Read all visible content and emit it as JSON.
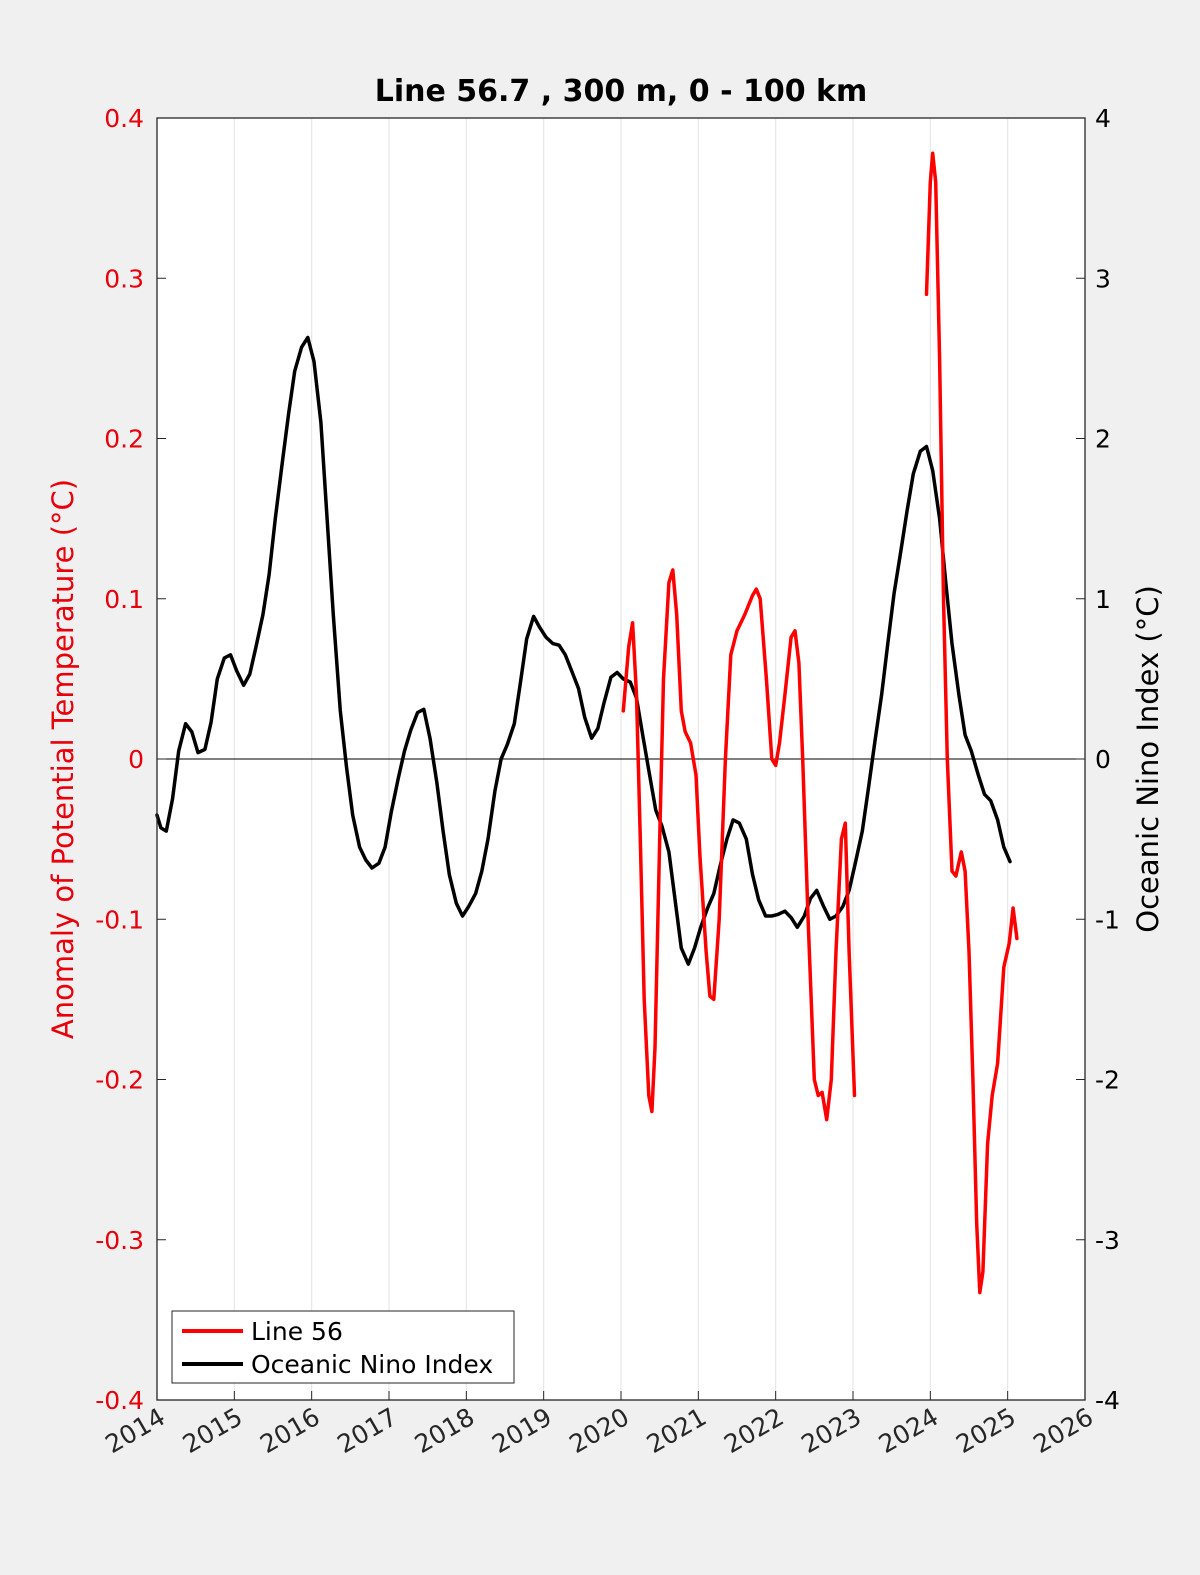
{
  "chart_data": {
    "type": "line",
    "title": "Line 56.7 , 300 m, 0 - 100 km",
    "ylabel_left": "Anomaly of Potential Temperature (°C)",
    "ylabel_right": "Oceanic Nino Index (°C)",
    "xlim": [
      2014,
      2026
    ],
    "ylim_left": [
      -0.4,
      0.4
    ],
    "ylim_right": [
      -4,
      4
    ],
    "grid": "vertical",
    "legend_position": "bottom-left",
    "x_ticks": [
      "2014",
      "2015",
      "2016",
      "2017",
      "2018",
      "2019",
      "2020",
      "2021",
      "2022",
      "2023",
      "2024",
      "2025",
      "2026"
    ],
    "y_ticks_left": [
      "-0.4",
      "-0.3",
      "-0.2",
      "-0.1",
      "0",
      "0.1",
      "0.2",
      "0.3",
      "0.4"
    ],
    "y_ticks_right": [
      "-4",
      "-3",
      "-2",
      "-1",
      "0",
      "1",
      "2",
      "3",
      "4"
    ],
    "zero_line": 0,
    "series": [
      {
        "name": "Line 56",
        "color": "#ff0000",
        "axis": "left",
        "segments": [
          [
            [
              2020.03,
              0.03
            ],
            [
              2020.1,
              0.07
            ],
            [
              2020.15,
              0.085
            ],
            [
              2020.2,
              0.04
            ],
            [
              2020.25,
              -0.05
            ],
            [
              2020.3,
              -0.15
            ],
            [
              2020.36,
              -0.21
            ],
            [
              2020.4,
              -0.22
            ],
            [
              2020.44,
              -0.18
            ],
            [
              2020.5,
              -0.05
            ],
            [
              2020.55,
              0.05
            ],
            [
              2020.62,
              0.11
            ],
            [
              2020.67,
              0.118
            ],
            [
              2020.72,
              0.09
            ],
            [
              2020.78,
              0.03
            ],
            [
              2020.83,
              0.017
            ],
            [
              2020.9,
              0.01
            ],
            [
              2020.97,
              -0.01
            ],
            [
              2021.02,
              -0.06
            ],
            [
              2021.1,
              -0.12
            ],
            [
              2021.15,
              -0.148
            ],
            [
              2021.2,
              -0.15
            ],
            [
              2021.27,
              -0.1
            ],
            [
              2021.35,
              0
            ],
            [
              2021.42,
              0.065
            ],
            [
              2021.5,
              0.08
            ],
            [
              2021.6,
              0.09
            ],
            [
              2021.7,
              0.102
            ],
            [
              2021.75,
              0.106
            ],
            [
              2021.8,
              0.1
            ],
            [
              2021.88,
              0.05
            ],
            [
              2021.95,
              0.0
            ],
            [
              2022.0,
              -0.004
            ],
            [
              2022.05,
              0.01
            ],
            [
              2022.12,
              0.04
            ],
            [
              2022.2,
              0.076
            ],
            [
              2022.25,
              0.08
            ],
            [
              2022.3,
              0.06
            ],
            [
              2022.35,
              0.0
            ],
            [
              2022.42,
              -0.1
            ],
            [
              2022.5,
              -0.2
            ],
            [
              2022.55,
              -0.21
            ],
            [
              2022.6,
              -0.208
            ],
            [
              2022.66,
              -0.225
            ],
            [
              2022.72,
              -0.2
            ],
            [
              2022.78,
              -0.12
            ],
            [
              2022.85,
              -0.05
            ],
            [
              2022.9,
              -0.04
            ],
            [
              2022.95,
              -0.12
            ],
            [
              2023.02,
              -0.21
            ]
          ],
          [
            [
              2023.95,
              0.29
            ],
            [
              2024.0,
              0.36
            ],
            [
              2024.03,
              0.378
            ],
            [
              2024.07,
              0.36
            ],
            [
              2024.12,
              0.25
            ],
            [
              2024.17,
              0.1
            ],
            [
              2024.22,
              0.0
            ],
            [
              2024.28,
              -0.07
            ],
            [
              2024.33,
              -0.073
            ],
            [
              2024.4,
              -0.058
            ],
            [
              2024.45,
              -0.07
            ],
            [
              2024.5,
              -0.12
            ],
            [
              2024.55,
              -0.2
            ],
            [
              2024.6,
              -0.29
            ],
            [
              2024.64,
              -0.333
            ],
            [
              2024.68,
              -0.32
            ],
            [
              2024.74,
              -0.24
            ],
            [
              2024.8,
              -0.21
            ],
            [
              2024.87,
              -0.19
            ],
            [
              2024.95,
              -0.13
            ],
            [
              2025.02,
              -0.115
            ],
            [
              2025.07,
              -0.093
            ],
            [
              2025.12,
              -0.112
            ]
          ]
        ]
      },
      {
        "name": "Oceanic Nino Index",
        "color": "#000000",
        "axis": "right",
        "points": [
          [
            2014.0,
            -0.35
          ],
          [
            2014.05,
            -0.43
          ],
          [
            2014.12,
            -0.45
          ],
          [
            2014.2,
            -0.25
          ],
          [
            2014.28,
            0.05
          ],
          [
            2014.37,
            0.22
          ],
          [
            2014.45,
            0.17
          ],
          [
            2014.53,
            0.04
          ],
          [
            2014.62,
            0.06
          ],
          [
            2014.7,
            0.23
          ],
          [
            2014.78,
            0.5
          ],
          [
            2014.87,
            0.63
          ],
          [
            2014.95,
            0.65
          ],
          [
            2015.03,
            0.55
          ],
          [
            2015.12,
            0.46
          ],
          [
            2015.2,
            0.53
          ],
          [
            2015.28,
            0.7
          ],
          [
            2015.37,
            0.9
          ],
          [
            2015.45,
            1.15
          ],
          [
            2015.53,
            1.5
          ],
          [
            2015.62,
            1.85
          ],
          [
            2015.7,
            2.15
          ],
          [
            2015.78,
            2.42
          ],
          [
            2015.87,
            2.57
          ],
          [
            2015.95,
            2.63
          ],
          [
            2016.03,
            2.48
          ],
          [
            2016.12,
            2.1
          ],
          [
            2016.2,
            1.5
          ],
          [
            2016.28,
            0.9
          ],
          [
            2016.37,
            0.3
          ],
          [
            2016.45,
            -0.05
          ],
          [
            2016.53,
            -0.35
          ],
          [
            2016.62,
            -0.55
          ],
          [
            2016.7,
            -0.63
          ],
          [
            2016.78,
            -0.68
          ],
          [
            2016.87,
            -0.65
          ],
          [
            2016.95,
            -0.55
          ],
          [
            2017.03,
            -0.33
          ],
          [
            2017.12,
            -0.12
          ],
          [
            2017.2,
            0.05
          ],
          [
            2017.28,
            0.18
          ],
          [
            2017.37,
            0.29
          ],
          [
            2017.45,
            0.31
          ],
          [
            2017.53,
            0.13
          ],
          [
            2017.62,
            -0.15
          ],
          [
            2017.7,
            -0.45
          ],
          [
            2017.78,
            -0.72
          ],
          [
            2017.87,
            -0.9
          ],
          [
            2017.95,
            -0.98
          ],
          [
            2018.03,
            -0.92
          ],
          [
            2018.12,
            -0.84
          ],
          [
            2018.2,
            -0.7
          ],
          [
            2018.28,
            -0.5
          ],
          [
            2018.37,
            -0.2
          ],
          [
            2018.45,
            0.0
          ],
          [
            2018.53,
            0.09
          ],
          [
            2018.62,
            0.22
          ],
          [
            2018.7,
            0.48
          ],
          [
            2018.78,
            0.75
          ],
          [
            2018.87,
            0.89
          ],
          [
            2018.95,
            0.82
          ],
          [
            2019.03,
            0.76
          ],
          [
            2019.12,
            0.72
          ],
          [
            2019.2,
            0.71
          ],
          [
            2019.28,
            0.65
          ],
          [
            2019.37,
            0.54
          ],
          [
            2019.45,
            0.44
          ],
          [
            2019.53,
            0.26
          ],
          [
            2019.62,
            0.13
          ],
          [
            2019.7,
            0.19
          ],
          [
            2019.78,
            0.35
          ],
          [
            2019.87,
            0.51
          ],
          [
            2019.95,
            0.54
          ],
          [
            2020.03,
            0.5
          ],
          [
            2020.12,
            0.48
          ],
          [
            2020.2,
            0.38
          ],
          [
            2020.28,
            0.15
          ],
          [
            2020.37,
            -0.1
          ],
          [
            2020.45,
            -0.32
          ],
          [
            2020.53,
            -0.42
          ],
          [
            2020.62,
            -0.58
          ],
          [
            2020.7,
            -0.88
          ],
          [
            2020.78,
            -1.18
          ],
          [
            2020.87,
            -1.28
          ],
          [
            2020.95,
            -1.18
          ],
          [
            2021.03,
            -1.05
          ],
          [
            2021.12,
            -0.93
          ],
          [
            2021.2,
            -0.84
          ],
          [
            2021.28,
            -0.67
          ],
          [
            2021.37,
            -0.5
          ],
          [
            2021.45,
            -0.38
          ],
          [
            2021.53,
            -0.4
          ],
          [
            2021.62,
            -0.5
          ],
          [
            2021.7,
            -0.72
          ],
          [
            2021.78,
            -0.88
          ],
          [
            2021.87,
            -0.98
          ],
          [
            2021.95,
            -0.98
          ],
          [
            2022.03,
            -0.97
          ],
          [
            2022.12,
            -0.95
          ],
          [
            2022.2,
            -0.99
          ],
          [
            2022.28,
            -1.05
          ],
          [
            2022.37,
            -0.98
          ],
          [
            2022.45,
            -0.87
          ],
          [
            2022.53,
            -0.82
          ],
          [
            2022.62,
            -0.92
          ],
          [
            2022.7,
            -1.0
          ],
          [
            2022.78,
            -0.98
          ],
          [
            2022.87,
            -0.92
          ],
          [
            2022.95,
            -0.82
          ],
          [
            2023.03,
            -0.65
          ],
          [
            2023.12,
            -0.45
          ],
          [
            2023.2,
            -0.18
          ],
          [
            2023.28,
            0.1
          ],
          [
            2023.37,
            0.4
          ],
          [
            2023.45,
            0.72
          ],
          [
            2023.53,
            1.03
          ],
          [
            2023.62,
            1.3
          ],
          [
            2023.7,
            1.55
          ],
          [
            2023.78,
            1.78
          ],
          [
            2023.87,
            1.92
          ],
          [
            2023.95,
            1.95
          ],
          [
            2024.03,
            1.8
          ],
          [
            2024.12,
            1.5
          ],
          [
            2024.2,
            1.1
          ],
          [
            2024.28,
            0.72
          ],
          [
            2024.37,
            0.4
          ],
          [
            2024.45,
            0.15
          ],
          [
            2024.53,
            0.05
          ],
          [
            2024.62,
            -0.1
          ],
          [
            2024.7,
            -0.22
          ],
          [
            2024.78,
            -0.26
          ],
          [
            2024.87,
            -0.38
          ],
          [
            2024.95,
            -0.55
          ],
          [
            2025.03,
            -0.64
          ]
        ]
      }
    ]
  }
}
